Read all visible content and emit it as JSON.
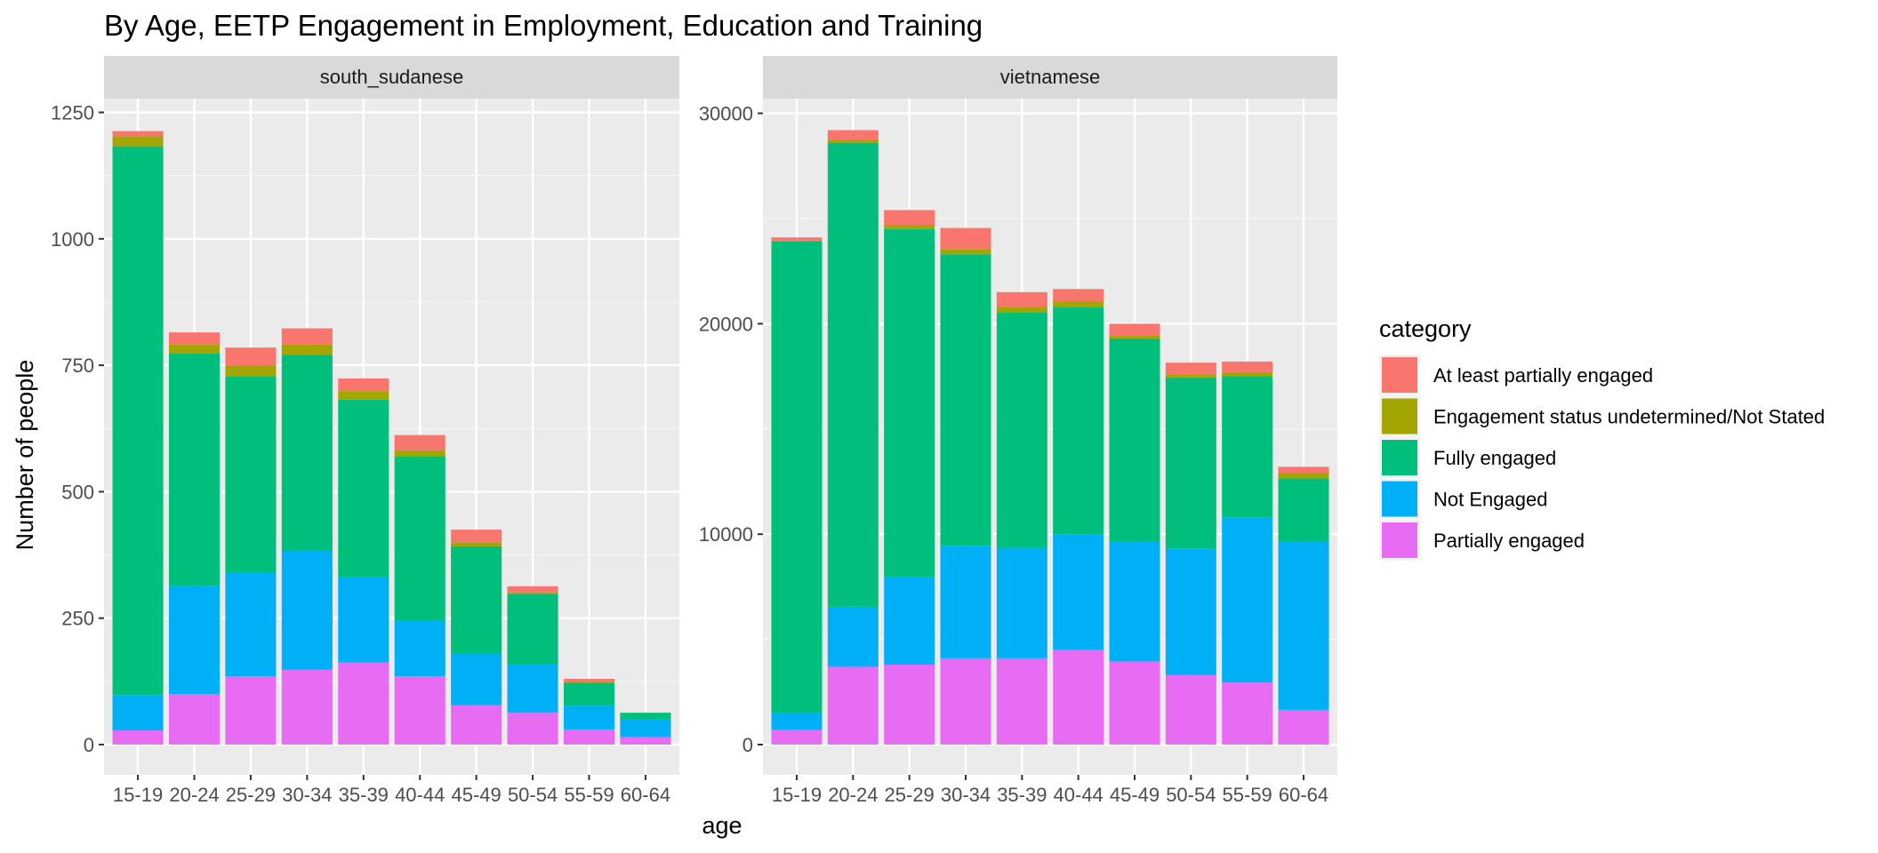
{
  "chart_data": {
    "type": "bar",
    "stacked": true,
    "title": "By Age,  EETP Engagement in Employment, Education and Training",
    "xlabel": "age",
    "ylabel": "Number of people",
    "legend_title": "category",
    "legend_position": "right",
    "grid": true,
    "categories": [
      "15-19",
      "20-24",
      "25-29",
      "30-34",
      "35-39",
      "40-44",
      "45-49",
      "50-54",
      "55-59",
      "60-64"
    ],
    "series_order": [
      "Partially engaged",
      "Not Engaged",
      "Fully engaged",
      "Engagement status undetermined/Not Stated",
      "At least partially engaged"
    ],
    "legend": [
      {
        "name": "At least partially engaged",
        "color": "#F8766D"
      },
      {
        "name": "Engagement status undetermined/Not Stated",
        "color": "#A3A500"
      },
      {
        "name": "Fully engaged",
        "color": "#00BF7D"
      },
      {
        "name": "Not Engaged",
        "color": "#00B0F6"
      },
      {
        "name": "Partially engaged",
        "color": "#E76BF3"
      }
    ],
    "panels": [
      {
        "name": "south_sudanese",
        "ylim": [
          0,
          1250
        ],
        "yticks": [
          0,
          250,
          500,
          750,
          1000,
          1250
        ],
        "ytick_labels": [
          "0",
          "250",
          "500",
          "750",
          "1000",
          "1250"
        ],
        "series": [
          {
            "name": "Partially engaged",
            "values": [
              28,
              100,
              135,
              148,
              162,
              135,
              78,
              63,
              30,
              15
            ]
          },
          {
            "name": "Not Engaged",
            "values": [
              70,
              213,
              205,
              235,
              170,
              110,
              102,
              95,
              47,
              35
            ]
          },
          {
            "name": "Fully engaged",
            "values": [
              1085,
              460,
              388,
              388,
              350,
              325,
              212,
              140,
              45,
              13
            ]
          },
          {
            "name": "Engagement status undetermined/Not Stated",
            "values": [
              20,
              18,
              22,
              20,
              17,
              12,
              8,
              3,
              2,
              0
            ]
          },
          {
            "name": "At least partially engaged",
            "values": [
              10,
              24,
              35,
              32,
              25,
              30,
              25,
              12,
              6,
              0
            ]
          }
        ]
      },
      {
        "name": "vietnamese",
        "ylim": [
          0,
          30000
        ],
        "yticks": [
          0,
          10000,
          20000,
          30000
        ],
        "ytick_labels": [
          "0",
          "10000",
          "20000",
          "30000"
        ],
        "series": [
          {
            "name": "Partially engaged",
            "values": [
              700,
              3700,
              3800,
              4100,
              4100,
              4500,
              3950,
              3300,
              2950,
              1650
            ]
          },
          {
            "name": "Not Engaged",
            "values": [
              800,
              2850,
              4150,
              5350,
              5250,
              5500,
              5700,
              6000,
              7850,
              8000
            ]
          },
          {
            "name": "Fully engaged",
            "values": [
              22400,
              22050,
              16550,
              13850,
              11200,
              10800,
              9650,
              8150,
              6700,
              3000
            ]
          },
          {
            "name": "Engagement status undetermined/Not Stated",
            "values": [
              50,
              150,
              200,
              250,
              250,
              250,
              150,
              150,
              200,
              250
            ]
          },
          {
            "name": "At least partially engaged",
            "values": [
              150,
              450,
              700,
              1000,
              700,
              600,
              550,
              550,
              500,
              300
            ]
          }
        ]
      }
    ]
  }
}
